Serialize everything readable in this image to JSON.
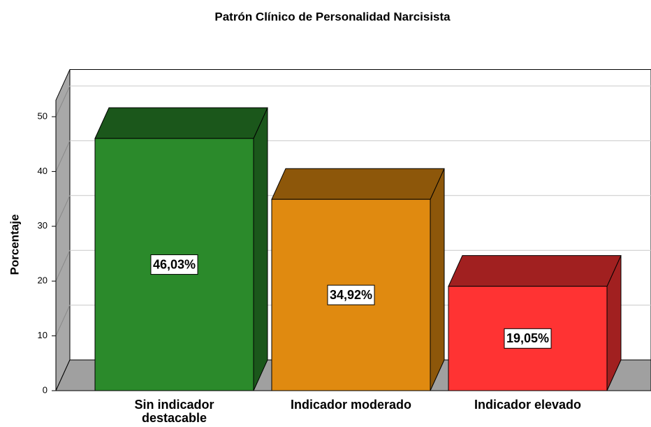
{
  "chart_data": {
    "type": "bar3d",
    "title": "Patrón Clínico de Personalidad Narcisista",
    "y_label": "Porcentaje",
    "categories": [
      "Sin indicador destacable",
      "Indicador moderado",
      "Indicador elevado"
    ],
    "values": [
      46.03,
      34.92,
      19.05
    ],
    "value_labels": [
      "46,03%",
      "34,92%",
      "19,05%"
    ],
    "colors": [
      "#2b8a2b",
      "#e08a10",
      "#ff3333"
    ],
    "ylim": [
      0,
      53
    ],
    "yticks": [
      0,
      10,
      20,
      30,
      40,
      50
    ],
    "grid": true
  }
}
